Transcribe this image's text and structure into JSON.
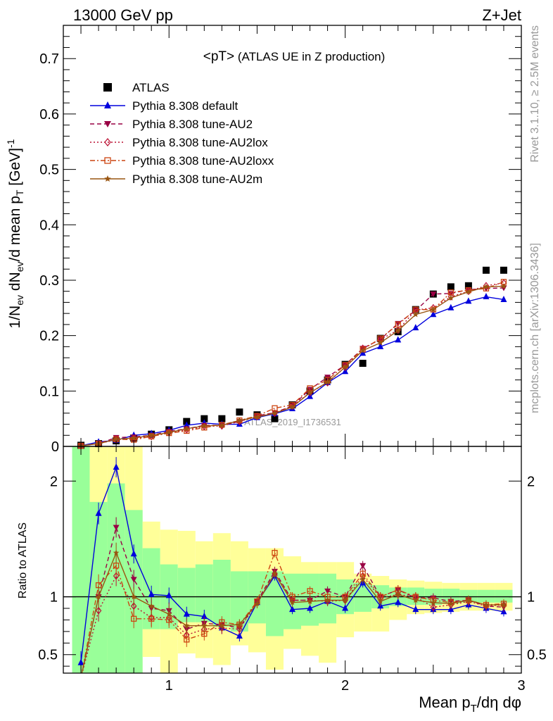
{
  "header": {
    "left": "13000 GeV pp",
    "right": "Z+Jet"
  },
  "side": {
    "rivet": "Rivet 3.1.10, ≥ 2.5M events",
    "mcplots": "mcplots.cern.ch [arXiv:1306.3436]"
  },
  "watermark": "ATLAS_2019_I1736531",
  "plot_title_main": "<pT>",
  "plot_title_sub": " (ATLAS UE in Z production)",
  "colors": {
    "atlas": "#000000",
    "default": "#0000dd",
    "au2": "#990044",
    "au2lox": "#bb1133",
    "au2loxx": "#cc4411",
    "au2m": "#995511",
    "band_inner": "#99ff99",
    "band_outer": "#ffff99"
  },
  "chart_data": [
    {
      "type": "scatter",
      "title": "<pT> (ATLAS UE in Z production)",
      "xlabel": "Mean pT/dη dφ",
      "ylabel": "1/Nev dNev/d mean pT [GeV]^-1",
      "xlim": [
        0.4,
        3.0
      ],
      "ylim": [
        0,
        0.76
      ],
      "yticks": [
        "0",
        "0.1",
        "0.2",
        "0.3",
        "0.4",
        "0.5",
        "0.6",
        "0.7"
      ],
      "legend": "top-left",
      "x": [
        0.5,
        0.6,
        0.7,
        0.8,
        0.9,
        1.0,
        1.1,
        1.2,
        1.3,
        1.4,
        1.5,
        1.6,
        1.7,
        1.8,
        1.9,
        2.0,
        2.1,
        2.2,
        2.3,
        2.4,
        2.5,
        2.6,
        2.7,
        2.8,
        2.9
      ],
      "series": [
        {
          "name": "ATLAS",
          "key": "atlas",
          "marker": "square",
          "line": "none",
          "values": [
            0.002,
            0.005,
            0.01,
            0.015,
            0.022,
            0.03,
            0.045,
            0.05,
            0.05,
            0.062,
            0.057,
            0.05,
            0.075,
            0.1,
            0.12,
            0.148,
            0.15,
            0.195,
            0.207,
            0.247,
            0.275,
            0.288,
            0.29,
            0.318,
            0.318
          ]
        },
        {
          "name": "Pythia 8.308 default",
          "key": "default",
          "marker": "triangle-up",
          "line": "solid",
          "values": [
            0.001,
            0.008,
            0.011,
            0.02,
            0.023,
            0.029,
            0.038,
            0.042,
            0.04,
            0.04,
            0.052,
            0.059,
            0.068,
            0.09,
            0.115,
            0.135,
            0.168,
            0.18,
            0.192,
            0.214,
            0.238,
            0.25,
            0.262,
            0.27,
            0.265
          ]
        },
        {
          "name": "Pythia 8.308 tune-AU2",
          "key": "au2",
          "marker": "triangle-down",
          "line": "dashed",
          "values": [
            0.001,
            0.005,
            0.016,
            0.017,
            0.02,
            0.027,
            0.032,
            0.038,
            0.038,
            0.045,
            0.055,
            0.061,
            0.073,
            0.103,
            0.125,
            0.147,
            0.177,
            0.193,
            0.222,
            0.245,
            0.275,
            0.276,
            0.283,
            0.285,
            0.286
          ]
        },
        {
          "name": "Pythia 8.308 tune-AU2lox",
          "key": "au2lox",
          "marker": "diamond",
          "line": "dotted",
          "values": [
            0.001,
            0.005,
            0.012,
            0.014,
            0.018,
            0.025,
            0.03,
            0.036,
            0.037,
            0.045,
            0.054,
            0.06,
            0.073,
            0.097,
            0.115,
            0.143,
            0.177,
            0.193,
            0.21,
            0.246,
            0.25,
            0.27,
            0.28,
            0.29,
            0.295
          ]
        },
        {
          "name": "Pythia 8.308 tune-AU2loxx",
          "key": "au2loxx",
          "marker": "open-square",
          "line": "dashdot",
          "values": [
            0.001,
            0.005,
            0.013,
            0.012,
            0.018,
            0.024,
            0.028,
            0.034,
            0.039,
            0.047,
            0.055,
            0.069,
            0.075,
            0.105,
            0.12,
            0.147,
            0.175,
            0.195,
            0.22,
            0.247,
            0.247,
            0.278,
            0.282,
            0.285,
            0.297
          ]
        },
        {
          "name": "Pythia 8.308 tune-AU2m",
          "key": "au2m",
          "marker": "star",
          "line": "solid",
          "values": [
            0.001,
            0.005,
            0.013,
            0.015,
            0.02,
            0.025,
            0.032,
            0.037,
            0.038,
            0.047,
            0.053,
            0.06,
            0.071,
            0.097,
            0.116,
            0.143,
            0.173,
            0.187,
            0.209,
            0.238,
            0.247,
            0.268,
            0.279,
            0.288,
            0.289
          ]
        }
      ]
    },
    {
      "type": "line",
      "ylabel": "Ratio to ATLAS",
      "xlabel": "Mean pT/dη dφ",
      "xlim": [
        0.4,
        3.0
      ],
      "ylim": [
        0.34,
        2.3
      ],
      "yticks": [
        "0.5",
        "1",
        "2"
      ],
      "xticks": [
        "1",
        "2",
        "3"
      ],
      "x": [
        0.5,
        0.6,
        0.7,
        0.8,
        0.9,
        1.0,
        1.1,
        1.2,
        1.3,
        1.4,
        1.5,
        1.6,
        1.7,
        1.8,
        1.9,
        2.0,
        2.1,
        2.2,
        2.3,
        2.4,
        2.5,
        2.6,
        2.7,
        2.8,
        2.9
      ],
      "band_inner_lo": [
        0.3,
        0.3,
        0.3,
        0.3,
        0.72,
        0.72,
        0.78,
        0.78,
        0.74,
        0.7,
        0.77,
        0.66,
        0.72,
        0.75,
        0.77,
        0.85,
        0.87,
        0.9,
        0.92,
        0.93,
        0.93,
        0.94,
        0.95,
        0.95,
        0.95
      ],
      "band_inner_hi": [
        2.3,
        1.82,
        1.98,
        1.75,
        1.42,
        1.28,
        1.25,
        1.28,
        1.32,
        1.22,
        1.22,
        1.22,
        1.2,
        1.2,
        1.2,
        1.15,
        1.12,
        1.1,
        1.08,
        1.08,
        1.07,
        1.07,
        1.06,
        1.06,
        1.06
      ],
      "band_outer_lo": [
        0.3,
        0.3,
        0.3,
        0.3,
        0.48,
        0.3,
        0.51,
        0.47,
        0.41,
        0.58,
        0.52,
        0.37,
        0.55,
        0.49,
        0.43,
        0.65,
        0.7,
        0.7,
        0.8,
        0.85,
        0.86,
        0.87,
        0.88,
        0.88,
        0.88
      ],
      "band_outer_hi": [
        2.3,
        2.3,
        2.3,
        2.3,
        1.65,
        1.58,
        1.57,
        1.48,
        1.55,
        1.48,
        1.42,
        1.42,
        1.35,
        1.3,
        1.3,
        1.3,
        1.2,
        1.18,
        1.15,
        1.14,
        1.13,
        1.12,
        1.12,
        1.12,
        1.12
      ],
      "series": [
        {
          "name": "Pythia 8.308 default",
          "key": "default",
          "values": [
            0.43,
            1.72,
            2.12,
            1.37,
            1.02,
            1.01,
            0.85,
            0.83,
            0.73,
            0.66,
            0.95,
            1.18,
            0.89,
            0.9,
            0.96,
            0.9,
            1.12,
            0.92,
            0.95,
            0.89,
            0.89,
            0.89,
            0.93,
            0.9,
            0.87
          ]
        },
        {
          "name": "Pythia 8.308 tune-AU2",
          "key": "au2",
          "values": [
            0.3,
            1.0,
            1.6,
            1.15,
            0.9,
            0.88,
            0.72,
            0.77,
            0.76,
            0.73,
            0.96,
            1.22,
            0.97,
            0.97,
            1.05,
            1.0,
            1.27,
            1.0,
            1.06,
            0.99,
            0.99,
            0.96,
            0.97,
            0.92,
            0.91
          ]
        },
        {
          "name": "Pythia 8.308 tune-AU2lox",
          "key": "au2lox",
          "values": [
            0.3,
            0.88,
            1.18,
            0.92,
            0.82,
            0.82,
            0.67,
            0.72,
            0.73,
            0.72,
            0.95,
            1.2,
            0.97,
            0.97,
            0.96,
            0.97,
            1.18,
            0.99,
            1.02,
            1.0,
            0.91,
            0.93,
            0.96,
            0.92,
            0.93
          ]
        },
        {
          "name": "Pythia 8.308 tune-AU2loxx",
          "key": "au2loxx",
          "values": [
            0.3,
            1.1,
            1.27,
            0.81,
            0.81,
            0.8,
            0.63,
            0.68,
            0.78,
            0.76,
            0.96,
            1.38,
            1.0,
            1.05,
            1.0,
            1.0,
            1.2,
            1.0,
            1.06,
            1.0,
            0.97,
            0.95,
            0.97,
            0.93,
            0.94
          ]
        },
        {
          "name": "Pythia 8.308 tune-AU2m",
          "key": "au2m",
          "values": [
            0.3,
            1.0,
            1.38,
            1.0,
            0.92,
            0.85,
            0.75,
            0.75,
            0.75,
            0.76,
            0.94,
            1.2,
            0.95,
            0.96,
            0.97,
            0.97,
            1.15,
            0.96,
            1.02,
            0.97,
            0.95,
            0.94,
            0.97,
            0.93,
            0.93
          ]
        }
      ]
    }
  ]
}
